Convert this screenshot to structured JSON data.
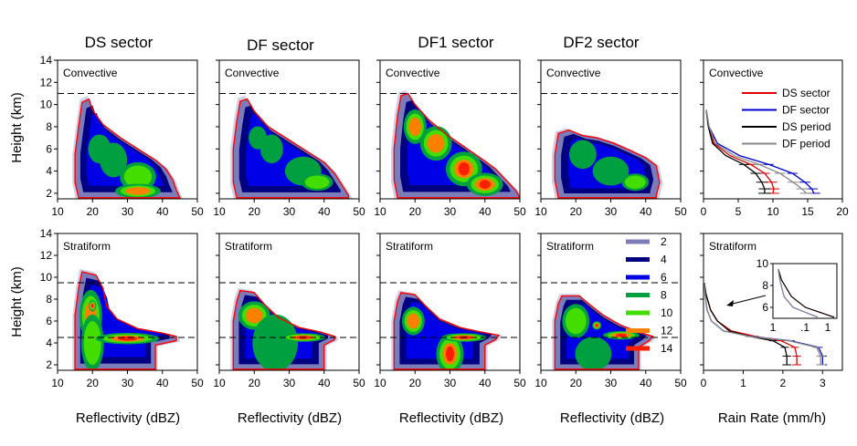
{
  "chart_data": {
    "type": "heatmap",
    "sector_titles": [
      "DS sector",
      "DF sector",
      "DF1 sector",
      "DF2 sector"
    ],
    "row_labels": [
      "Convective",
      "Stratiform"
    ],
    "ylabel": "Height (km)",
    "xlabel": "Reflectivity (dBZ)",
    "rain_xlabel": "Rain Rate (mm/h)",
    "y_ticks": [
      "2",
      "4",
      "6",
      "8",
      "10",
      "12",
      "14"
    ],
    "x_ticks": [
      "10",
      "20",
      "30",
      "40",
      "50"
    ],
    "ylim": [
      1.5,
      14
    ],
    "xlim": [
      10,
      50
    ],
    "reference_heights_km": {
      "Convective": 11,
      "Stratiform_top": 9.5,
      "Stratiform_melting": 4.5
    },
    "frequency_levels": [
      "2",
      "4",
      "6",
      "8",
      "10",
      "12",
      "14"
    ],
    "level_colors": [
      "#7c7cb8",
      "#000080",
      "#0000e6",
      "#00a040",
      "#44dd00",
      "#ff8000",
      "#ff1e00"
    ],
    "rain_rate": {
      "convective": {
        "xlim": [
          0,
          20
        ],
        "x_ticks": [
          "0",
          "5",
          "10",
          "15",
          "20"
        ],
        "series": [
          {
            "name": "DS sector",
            "color": "#e00000",
            "x": [
              0.4,
              0.7,
              1.5,
              3.8,
              6.8,
              8.8,
              9.8,
              10.1,
              10.0
            ],
            "y": [
              9.5,
              8,
              6.5,
              5.4,
              4.6,
              3.8,
              3.0,
              2.4,
              2.0
            ]
          },
          {
            "name": "DF sector",
            "color": "#0000cc",
            "x": [
              0.4,
              0.8,
              2.0,
              5.2,
              9.4,
              12.8,
              14.6,
              15.6,
              15.9
            ],
            "y": [
              9.5,
              8,
              6.5,
              5.4,
              4.6,
              3.8,
              3.0,
              2.4,
              2.0
            ]
          },
          {
            "name": "DS period",
            "color": "#000000",
            "x": [
              0.4,
              0.7,
              1.3,
              3.2,
              5.8,
              7.5,
              8.4,
              8.8,
              8.8
            ],
            "y": [
              9.5,
              8,
              6.5,
              5.4,
              4.6,
              3.8,
              3.0,
              2.4,
              2.0
            ]
          },
          {
            "name": "DF period",
            "color": "#888888",
            "x": [
              0.4,
              0.8,
              1.7,
              4.4,
              8.0,
              11.0,
              12.9,
              14.2,
              14.8
            ],
            "y": [
              9.5,
              8,
              6.5,
              5.4,
              4.6,
              3.8,
              3.0,
              2.4,
              2.0
            ]
          }
        ]
      },
      "stratiform": {
        "xlim": [
          0,
          3.5
        ],
        "x_ticks": [
          "0",
          "1",
          "2",
          "3"
        ],
        "series": [
          {
            "name": "DS sector",
            "color": "#e00000",
            "x": [
              0.02,
              0.06,
              0.18,
              0.35,
              0.7,
              1.3,
              1.95,
              2.3,
              2.35,
              2.35
            ],
            "y": [
              9.5,
              8.5,
              7.0,
              6.0,
              5.1,
              4.6,
              4.2,
              3.6,
              2.8,
              2.0
            ]
          },
          {
            "name": "DF sector",
            "color": "#0000cc",
            "x": [
              0.02,
              0.04,
              0.09,
              0.2,
              0.5,
              1.2,
              2.2,
              2.9,
              3.0,
              3.0
            ],
            "y": [
              9.5,
              8.5,
              7.0,
              6.0,
              5.1,
              4.6,
              4.2,
              3.6,
              2.8,
              2.0
            ]
          },
          {
            "name": "DS period",
            "color": "#000000",
            "x": [
              0.02,
              0.06,
              0.18,
              0.35,
              0.65,
              1.15,
              1.75,
              2.05,
              2.1,
              2.1
            ],
            "y": [
              9.5,
              8.5,
              7.0,
              6.0,
              5.1,
              4.6,
              4.2,
              3.6,
              2.8,
              2.0
            ]
          },
          {
            "name": "DF period",
            "color": "#888888",
            "x": [
              0.02,
              0.04,
              0.09,
              0.2,
              0.5,
              1.15,
              2.15,
              2.85,
              2.95,
              2.95
            ],
            "y": [
              9.5,
              8.5,
              7.0,
              6.0,
              5.1,
              4.6,
              4.2,
              3.6,
              2.8,
              2.0
            ]
          }
        ],
        "inset": {
          "y_ticks": [
            "6",
            "8",
            "10"
          ],
          "x_ticks": [
            "1",
            ".1",
            "1"
          ],
          "ylim": [
            5,
            10
          ]
        }
      }
    }
  }
}
